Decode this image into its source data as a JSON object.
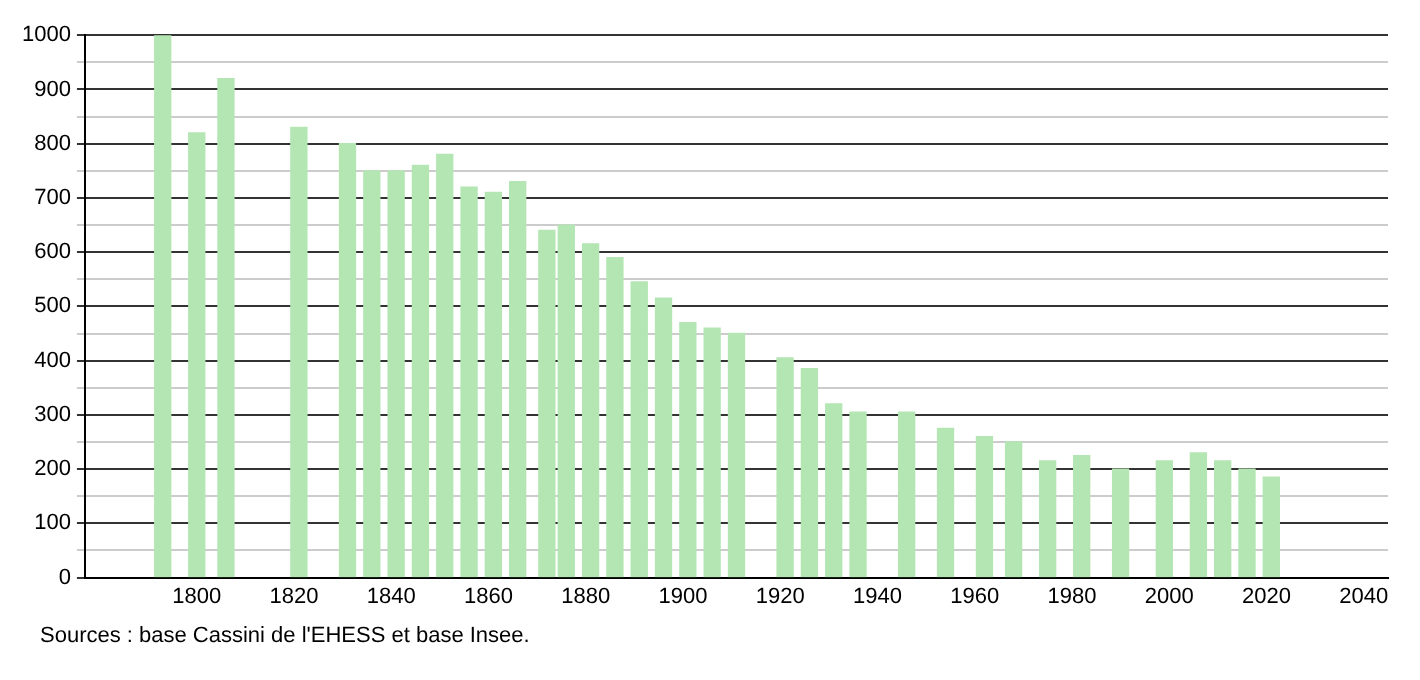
{
  "chart_data": {
    "type": "bar",
    "x": [
      1793,
      1800,
      1806,
      1821,
      1831,
      1836,
      1841,
      1846,
      1851,
      1856,
      1861,
      1866,
      1872,
      1876,
      1881,
      1886,
      1891,
      1896,
      1901,
      1906,
      1911,
      1921,
      1926,
      1931,
      1936,
      1946,
      1954,
      1962,
      1968,
      1975,
      1982,
      1990,
      1999,
      2006,
      2011,
      2016,
      2021
    ],
    "values": [
      1000,
      820,
      920,
      830,
      800,
      750,
      750,
      760,
      780,
      720,
      710,
      730,
      640,
      650,
      615,
      590,
      545,
      515,
      470,
      460,
      450,
      405,
      385,
      320,
      305,
      305,
      275,
      260,
      250,
      215,
      225,
      200,
      215,
      230,
      215,
      200,
      185
    ],
    "color": "#b3e6b3",
    "xlim": [
      1777,
      2045
    ],
    "xticks": [
      1800,
      1820,
      1840,
      1860,
      1880,
      1900,
      1920,
      1940,
      1960,
      1980,
      2000,
      2020,
      2040
    ],
    "ylim": [
      0,
      1000
    ],
    "yticks": [
      0,
      {
        "value": 50,
        "label": null
      },
      100,
      {
        "value": 150,
        "label": null
      },
      200,
      {
        "value": 250,
        "label": null
      },
      300,
      {
        "value": 350,
        "label": null
      },
      400,
      {
        "value": 450,
        "label": null
      },
      500,
      {
        "value": 550,
        "label": null
      },
      600,
      {
        "value": 650,
        "label": null
      },
      700,
      {
        "value": 750,
        "label": null
      },
      800,
      {
        "value": 850,
        "label": null
      },
      900,
      {
        "value": 950,
        "label": null
      },
      1000
    ],
    "grid": "y",
    "legend": false,
    "annotations": [
      "Sources : base Cassini de l'EHESS et base Insee."
    ]
  }
}
